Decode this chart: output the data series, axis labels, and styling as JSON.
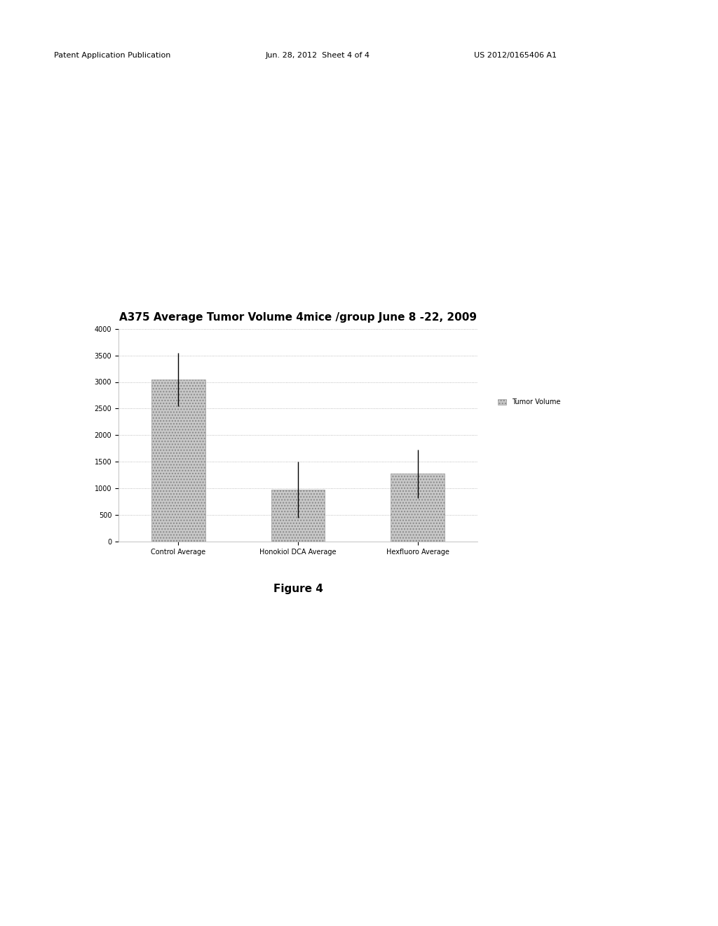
{
  "title": "A375 Average Tumor Volume 4mice /group June 8 -22, 2009",
  "categories": [
    "Control Average",
    "Honokiol DCA Average",
    "Hexfluoro Average"
  ],
  "values": [
    3050,
    975,
    1275
  ],
  "errors": [
    500,
    525,
    450
  ],
  "ylim": [
    0,
    4000
  ],
  "yticks": [
    0,
    500,
    1000,
    1500,
    2000,
    2500,
    3000,
    3500,
    4000
  ],
  "bar_color": "#c8c8c8",
  "bar_hatch": "....",
  "legend_label": "Tumor Volume",
  "figure_caption": "Figure 4",
  "background_color": "#ffffff",
  "header_left": "Patent Application Publication",
  "header_mid": "Jun. 28, 2012  Sheet 4 of 4",
  "header_right": "US 2012/0165406 A1",
  "title_fontsize": 11,
  "tick_fontsize": 7,
  "legend_fontsize": 7,
  "caption_fontsize": 11
}
